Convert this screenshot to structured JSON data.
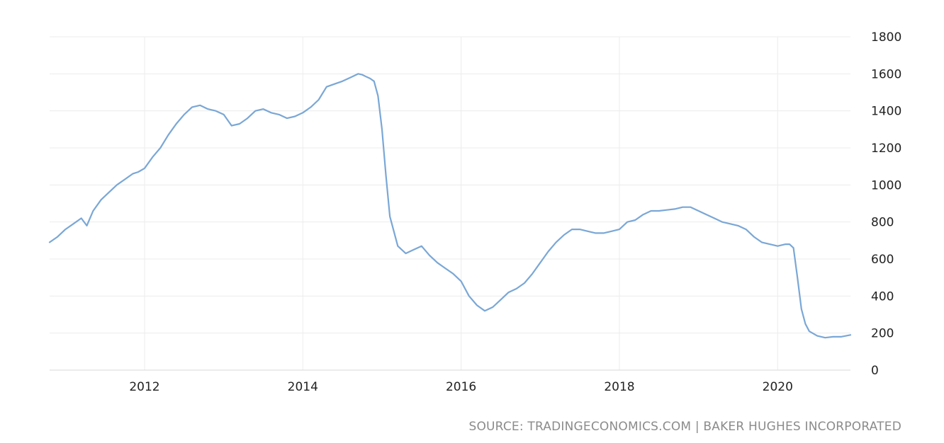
{
  "chart_data": {
    "type": "line",
    "title": "",
    "xlabel": "",
    "ylabel": "",
    "source": "SOURCE: TRADINGECONOMICS.COM | BAKER HUGHES INCORPORATED",
    "x_ticks": [
      "2012",
      "2014",
      "2016",
      "2018",
      "2020"
    ],
    "y_ticks": [
      "0",
      "200",
      "400",
      "600",
      "800",
      "1000",
      "1200",
      "1400",
      "1600",
      "1800"
    ],
    "xlim": [
      2010.8,
      2020.92
    ],
    "ylim": [
      0,
      1800
    ],
    "grid": true,
    "y_axis_position": "right",
    "series": [
      {
        "color": "#7aa7d6",
        "x": [
          2010.8,
          2010.9,
          2011.0,
          2011.1,
          2011.2,
          2011.27,
          2011.35,
          2011.45,
          2011.55,
          2011.65,
          2011.75,
          2011.85,
          2011.92,
          2012.0,
          2012.1,
          2012.2,
          2012.3,
          2012.4,
          2012.5,
          2012.6,
          2012.7,
          2012.8,
          2012.9,
          2013.0,
          2013.1,
          2013.2,
          2013.3,
          2013.4,
          2013.5,
          2013.6,
          2013.7,
          2013.8,
          2013.9,
          2014.0,
          2014.1,
          2014.2,
          2014.3,
          2014.4,
          2014.5,
          2014.6,
          2014.7,
          2014.75,
          2014.8,
          2014.85,
          2014.9,
          2014.95,
          2015.0,
          2015.05,
          2015.1,
          2015.2,
          2015.3,
          2015.4,
          2015.5,
          2015.6,
          2015.7,
          2015.8,
          2015.9,
          2016.0,
          2016.1,
          2016.2,
          2016.3,
          2016.4,
          2016.5,
          2016.6,
          2016.7,
          2016.8,
          2016.9,
          2017.0,
          2017.1,
          2017.2,
          2017.3,
          2017.4,
          2017.5,
          2017.6,
          2017.7,
          2017.8,
          2017.9,
          2018.0,
          2018.1,
          2018.2,
          2018.3,
          2018.4,
          2018.5,
          2018.6,
          2018.7,
          2018.8,
          2018.9,
          2019.0,
          2019.1,
          2019.2,
          2019.3,
          2019.4,
          2019.5,
          2019.6,
          2019.7,
          2019.8,
          2019.9,
          2020.0,
          2020.1,
          2020.15,
          2020.2,
          2020.25,
          2020.3,
          2020.35,
          2020.4,
          2020.5,
          2020.6,
          2020.7,
          2020.8,
          2020.92
        ],
        "y": [
          690,
          720,
          760,
          790,
          820,
          780,
          860,
          920,
          960,
          1000,
          1030,
          1060,
          1070,
          1090,
          1150,
          1200,
          1270,
          1330,
          1380,
          1420,
          1430,
          1410,
          1400,
          1380,
          1320,
          1330,
          1360,
          1400,
          1410,
          1390,
          1380,
          1360,
          1370,
          1390,
          1420,
          1460,
          1530,
          1545,
          1560,
          1580,
          1600,
          1595,
          1585,
          1575,
          1560,
          1480,
          1300,
          1050,
          830,
          670,
          630,
          650,
          670,
          620,
          580,
          550,
          520,
          480,
          400,
          350,
          320,
          340,
          380,
          420,
          440,
          470,
          520,
          580,
          640,
          690,
          730,
          760,
          760,
          750,
          740,
          740,
          750,
          760,
          800,
          810,
          840,
          860,
          860,
          865,
          870,
          880,
          880,
          860,
          840,
          820,
          800,
          790,
          780,
          760,
          720,
          690,
          680,
          670,
          680,
          680,
          660,
          500,
          330,
          250,
          210,
          185,
          175,
          180,
          180,
          190
        ]
      }
    ]
  }
}
